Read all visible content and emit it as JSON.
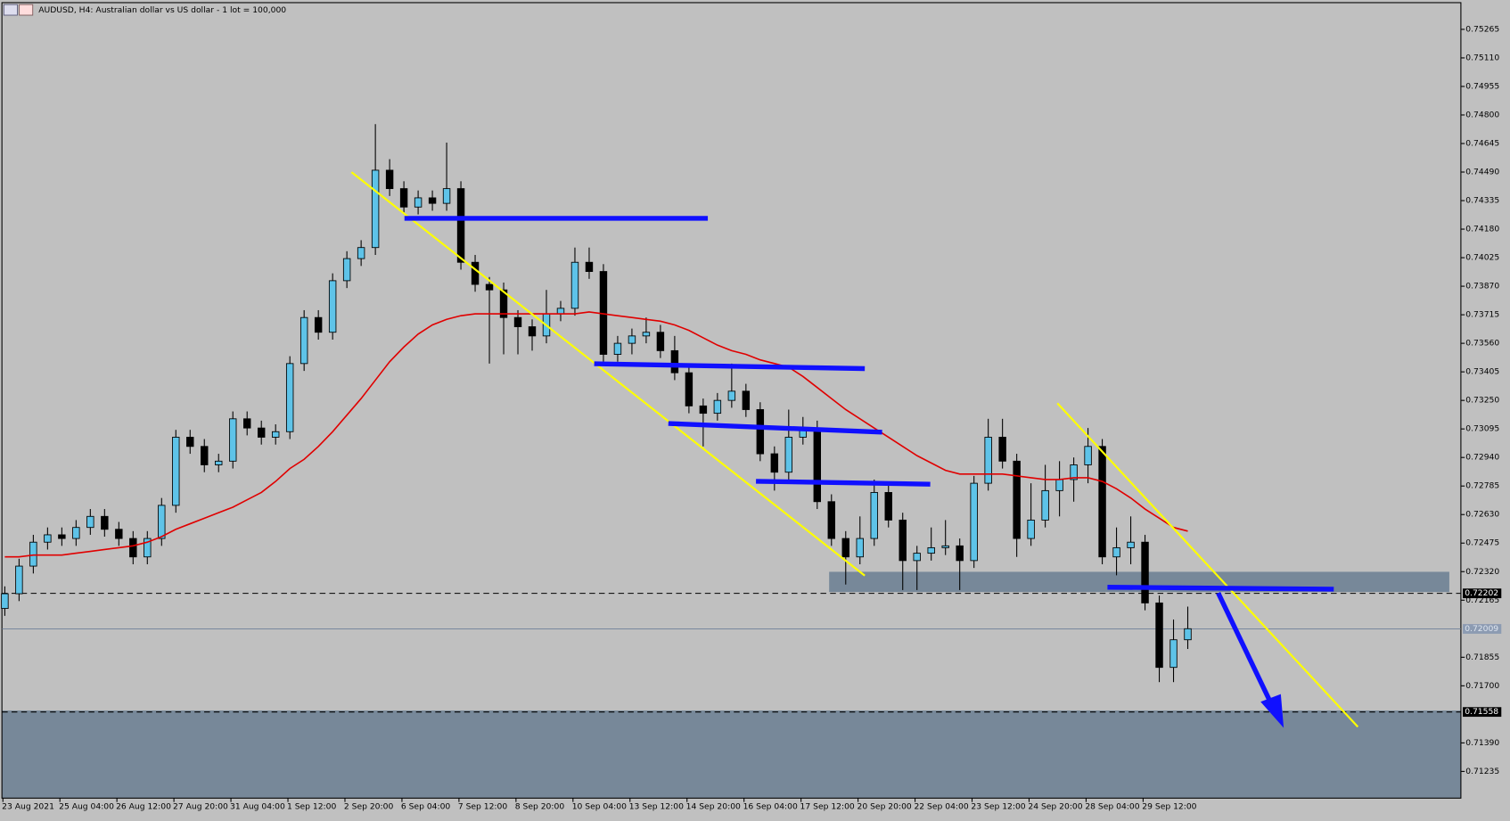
{
  "chart_data": {
    "type": "candlestick",
    "title": "AUDUSD, H4:  Australian dollar vs US dollar - 1 lot = 100,000",
    "x_labels": [
      "23 Aug 2021",
      "25 Aug 04:00",
      "26 Aug 12:00",
      "27 Aug 20:00",
      "31 Aug 04:00",
      "1 Sep 12:00",
      "2 Sep 20:00",
      "6 Sep 04:00",
      "7 Sep 12:00",
      "8 Sep 20:00",
      "10 Sep 04:00",
      "13 Sep 12:00",
      "14 Sep 20:00",
      "16 Sep 04:00",
      "17 Sep 12:00",
      "20 Sep 20:00",
      "22 Sep 04:00",
      "23 Sep 12:00",
      "24 Sep 20:00",
      "28 Sep 04:00",
      "29 Sep 12:00"
    ],
    "ylim": [
      0.7109,
      0.7541
    ],
    "yticks": [
      {
        "value": 0.75265,
        "label": "0.75265"
      },
      {
        "value": 0.7511,
        "label": "0.75110"
      },
      {
        "value": 0.74955,
        "label": "0.74955"
      },
      {
        "value": 0.748,
        "label": "0.74800"
      },
      {
        "value": 0.74645,
        "label": "0.74645"
      },
      {
        "value": 0.7449,
        "label": "0.74490"
      },
      {
        "value": 0.74335,
        "label": "0.74335"
      },
      {
        "value": 0.7418,
        "label": "0.74180"
      },
      {
        "value": 0.74025,
        "label": "0.74025"
      },
      {
        "value": 0.7387,
        "label": "0.73870"
      },
      {
        "value": 0.73715,
        "label": "0.73715"
      },
      {
        "value": 0.7356,
        "label": "0.73560"
      },
      {
        "value": 0.73405,
        "label": "0.73405"
      },
      {
        "value": 0.7325,
        "label": "0.73250"
      },
      {
        "value": 0.73095,
        "label": "0.73095"
      },
      {
        "value": 0.7294,
        "label": "0.72940"
      },
      {
        "value": 0.72785,
        "label": "0.72785"
      },
      {
        "value": 0.7263,
        "label": "0.72630"
      },
      {
        "value": 0.72475,
        "label": "0.72475"
      },
      {
        "value": 0.7232,
        "label": "0.72320"
      },
      {
        "value": 0.72165,
        "label": "0.72165"
      },
      {
        "value": 0.71855,
        "label": "0.71855"
      },
      {
        "value": 0.717,
        "label": "0.71700"
      },
      {
        "value": 0.7139,
        "label": "0.71390"
      },
      {
        "value": 0.71235,
        "label": "0.71235"
      }
    ],
    "bull_color": "#5ec3e8",
    "bear_color": "#000000",
    "ohlc": [
      [
        0.7212,
        0.7224,
        0.7208,
        0.722
      ],
      [
        0.722,
        0.7239,
        0.7216,
        0.7235
      ],
      [
        0.7235,
        0.7252,
        0.7231,
        0.7248
      ],
      [
        0.7248,
        0.7256,
        0.7244,
        0.7252
      ],
      [
        0.7252,
        0.7256,
        0.7246,
        0.725
      ],
      [
        0.725,
        0.726,
        0.7246,
        0.7256
      ],
      [
        0.7256,
        0.7266,
        0.7252,
        0.7262
      ],
      [
        0.7262,
        0.7266,
        0.7251,
        0.7255
      ],
      [
        0.7255,
        0.7259,
        0.7246,
        0.725
      ],
      [
        0.725,
        0.7254,
        0.7236,
        0.724
      ],
      [
        0.724,
        0.7254,
        0.7236,
        0.725
      ],
      [
        0.725,
        0.7272,
        0.7246,
        0.7268
      ],
      [
        0.7268,
        0.7309,
        0.7264,
        0.7305
      ],
      [
        0.7305,
        0.7309,
        0.7296,
        0.73
      ],
      [
        0.73,
        0.7304,
        0.7286,
        0.729
      ],
      [
        0.729,
        0.7296,
        0.7286,
        0.7292
      ],
      [
        0.7292,
        0.7319,
        0.7288,
        0.7315
      ],
      [
        0.7315,
        0.7319,
        0.7306,
        0.731
      ],
      [
        0.731,
        0.7314,
        0.7301,
        0.7305
      ],
      [
        0.7305,
        0.7312,
        0.7301,
        0.7308
      ],
      [
        0.7308,
        0.7349,
        0.7304,
        0.7345
      ],
      [
        0.7345,
        0.7374,
        0.7341,
        0.737
      ],
      [
        0.737,
        0.7374,
        0.7358,
        0.7362
      ],
      [
        0.7362,
        0.7394,
        0.7358,
        0.739
      ],
      [
        0.739,
        0.7406,
        0.7386,
        0.7402
      ],
      [
        0.7402,
        0.7412,
        0.7398,
        0.7408
      ],
      [
        0.7408,
        0.7475,
        0.7404,
        0.745
      ],
      [
        0.745,
        0.7456,
        0.7436,
        0.744
      ],
      [
        0.744,
        0.7444,
        0.7426,
        0.743
      ],
      [
        0.743,
        0.7439,
        0.7426,
        0.7435
      ],
      [
        0.7435,
        0.7439,
        0.7428,
        0.7432
      ],
      [
        0.7432,
        0.7465,
        0.7428,
        0.744
      ],
      [
        0.744,
        0.7444,
        0.7396,
        0.74
      ],
      [
        0.74,
        0.7404,
        0.7384,
        0.7388
      ],
      [
        0.7388,
        0.7392,
        0.7345,
        0.7385
      ],
      [
        0.7385,
        0.7389,
        0.735,
        0.737
      ],
      [
        0.737,
        0.7374,
        0.735,
        0.7365
      ],
      [
        0.7365,
        0.7369,
        0.7352,
        0.736
      ],
      [
        0.736,
        0.7385,
        0.7356,
        0.7372
      ],
      [
        0.7372,
        0.7379,
        0.7368,
        0.7375
      ],
      [
        0.7375,
        0.7408,
        0.7371,
        0.74
      ],
      [
        0.74,
        0.7408,
        0.7391,
        0.7395
      ],
      [
        0.7395,
        0.7399,
        0.7346,
        0.735
      ],
      [
        0.735,
        0.736,
        0.7346,
        0.7356
      ],
      [
        0.7356,
        0.7364,
        0.735,
        0.736
      ],
      [
        0.736,
        0.737,
        0.7356,
        0.7362
      ],
      [
        0.7362,
        0.7366,
        0.7348,
        0.7352
      ],
      [
        0.7352,
        0.736,
        0.7336,
        0.734
      ],
      [
        0.734,
        0.7344,
        0.7318,
        0.7322
      ],
      [
        0.7322,
        0.7326,
        0.73,
        0.7318
      ],
      [
        0.7318,
        0.7329,
        0.7314,
        0.7325
      ],
      [
        0.7325,
        0.7345,
        0.7321,
        0.733
      ],
      [
        0.733,
        0.7334,
        0.7316,
        0.732
      ],
      [
        0.732,
        0.7324,
        0.7292,
        0.7296
      ],
      [
        0.7296,
        0.73,
        0.7276,
        0.7286
      ],
      [
        0.7286,
        0.732,
        0.7282,
        0.7305
      ],
      [
        0.7305,
        0.7316,
        0.7301,
        0.731
      ],
      [
        0.731,
        0.7314,
        0.7266,
        0.727
      ],
      [
        0.727,
        0.7274,
        0.7246,
        0.725
      ],
      [
        0.725,
        0.7254,
        0.7225,
        0.724
      ],
      [
        0.724,
        0.7262,
        0.7236,
        0.725
      ],
      [
        0.725,
        0.7282,
        0.7246,
        0.7275
      ],
      [
        0.7275,
        0.7279,
        0.7256,
        0.726
      ],
      [
        0.726,
        0.7264,
        0.7222,
        0.7238
      ],
      [
        0.7238,
        0.7246,
        0.7222,
        0.7242
      ],
      [
        0.7242,
        0.7256,
        0.7238,
        0.7245
      ],
      [
        0.7245,
        0.726,
        0.7241,
        0.7246
      ],
      [
        0.7246,
        0.725,
        0.7222,
        0.7238
      ],
      [
        0.7238,
        0.7284,
        0.7234,
        0.728
      ],
      [
        0.728,
        0.7315,
        0.7276,
        0.7305
      ],
      [
        0.7305,
        0.7315,
        0.7288,
        0.7292
      ],
      [
        0.7292,
        0.7296,
        0.724,
        0.725
      ],
      [
        0.725,
        0.728,
        0.7246,
        0.726
      ],
      [
        0.726,
        0.729,
        0.7256,
        0.7276
      ],
      [
        0.7276,
        0.7292,
        0.7262,
        0.7282
      ],
      [
        0.7282,
        0.7294,
        0.727,
        0.729
      ],
      [
        0.729,
        0.731,
        0.728,
        0.73
      ],
      [
        0.73,
        0.7304,
        0.7236,
        0.724
      ],
      [
        0.724,
        0.7256,
        0.723,
        0.7245
      ],
      [
        0.7245,
        0.7262,
        0.7236,
        0.7248
      ],
      [
        0.7248,
        0.7252,
        0.7211,
        0.7215
      ],
      [
        0.7215,
        0.7219,
        0.7172,
        0.718
      ],
      [
        0.718,
        0.7206,
        0.7172,
        0.7195
      ],
      [
        0.7195,
        0.7213,
        0.719,
        0.7201
      ]
    ],
    "moving_average": {
      "color": "#e00000",
      "values": [
        0.724,
        0.724,
        0.7241,
        0.7241,
        0.7241,
        0.7242,
        0.7243,
        0.7244,
        0.7245,
        0.7246,
        0.7248,
        0.7251,
        0.7255,
        0.7258,
        0.7261,
        0.7264,
        0.7267,
        0.7271,
        0.7275,
        0.7281,
        0.7288,
        0.7293,
        0.73,
        0.7308,
        0.7317,
        0.7326,
        0.7336,
        0.7346,
        0.7354,
        0.7361,
        0.7366,
        0.7369,
        0.7371,
        0.7372,
        0.7372,
        0.7372,
        0.7372,
        0.7372,
        0.7372,
        0.7372,
        0.7372,
        0.7373,
        0.7372,
        0.7371,
        0.737,
        0.7369,
        0.7368,
        0.7366,
        0.7363,
        0.7359,
        0.7355,
        0.7352,
        0.735,
        0.7347,
        0.7345,
        0.7343,
        0.7338,
        0.7332,
        0.7326,
        0.732,
        0.7315,
        0.731,
        0.7305,
        0.73,
        0.7295,
        0.7291,
        0.7287,
        0.7285,
        0.7285,
        0.7285,
        0.7285,
        0.7284,
        0.7283,
        0.7282,
        0.7282,
        0.7283,
        0.7283,
        0.7281,
        0.7277,
        0.7272,
        0.7266,
        0.7261,
        0.7256,
        0.7254
      ]
    },
    "levels": [
      {
        "value": 0.72202,
        "label": "0.72202",
        "style": "dashed"
      },
      {
        "value": 0.71558,
        "label": "0.71558",
        "style": "dashed"
      },
      {
        "value": 0.72009,
        "label": "0.72009",
        "style": "current"
      }
    ]
  }
}
